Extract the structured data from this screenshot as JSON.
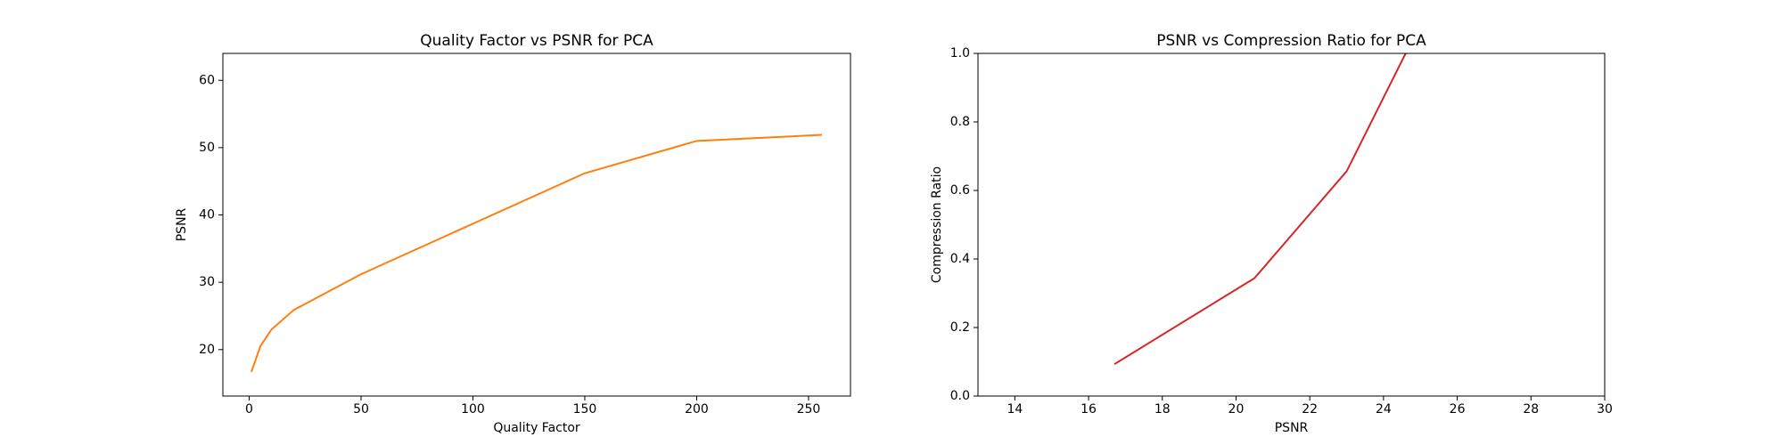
{
  "chart_data": [
    {
      "type": "line",
      "title": "Quality Factor vs PSNR for PCA",
      "x_label": "Quality Factor",
      "y_label": "PSNR",
      "x": [
        1,
        5,
        10,
        20,
        50,
        150,
        200,
        256
      ],
      "series": [
        {
          "color": "#ff7f0e",
          "values": [
            16.7,
            20.5,
            23.0,
            25.9,
            31.2,
            46.2,
            51.0,
            51.9
          ]
        }
      ],
      "xlim": [
        -11.75,
        268.75
      ],
      "ylim": [
        13.1,
        64.0
      ],
      "xticks": [
        0,
        50,
        100,
        150,
        200,
        250
      ],
      "yticks": [
        20,
        30,
        40,
        50,
        60
      ]
    },
    {
      "type": "line",
      "title": "PSNR vs Compression Ratio for PCA",
      "x_label": "PSNR",
      "y_label": "Compression Ratio",
      "x": [
        16.7,
        20.5,
        23.0,
        24.6
      ],
      "series": [
        {
          "color": "#d62728",
          "values": [
            0.093,
            0.344,
            0.656,
            1.0
          ]
        }
      ],
      "xlim": [
        13,
        30
      ],
      "ylim": [
        0,
        1
      ],
      "xticks": [
        14,
        16,
        18,
        20,
        22,
        24,
        26,
        28,
        30
      ],
      "yticks": [
        {
          "value": 0,
          "label": "0.0"
        },
        0.2,
        0.4,
        0.6,
        0.8,
        {
          "value": 1,
          "label": "1.0"
        }
      ]
    }
  ]
}
